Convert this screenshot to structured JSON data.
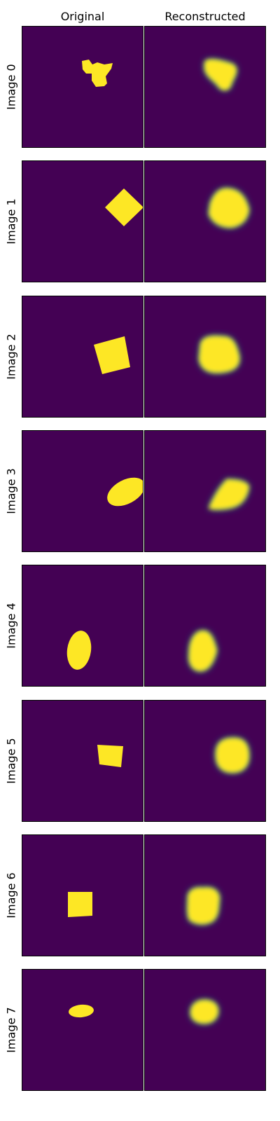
{
  "columns": [
    "Original",
    "Reconstructed"
  ],
  "rows": [
    {
      "label": "Image 0"
    },
    {
      "label": "Image 1"
    },
    {
      "label": "Image 2"
    },
    {
      "label": "Image 3"
    },
    {
      "label": "Image 4"
    },
    {
      "label": "Image 5"
    },
    {
      "label": "Image 6"
    },
    {
      "label": "Image 7"
    }
  ],
  "colors": {
    "background_panel": "#440154",
    "shape_fill": "#fde725",
    "edge_glow": "#21918c"
  }
}
